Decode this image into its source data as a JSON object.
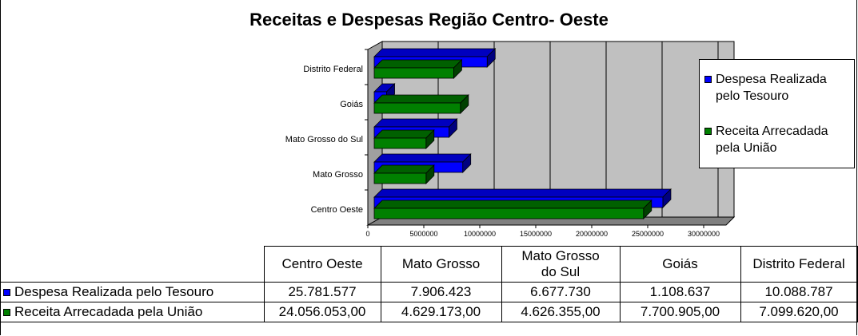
{
  "chart_data": {
    "type": "bar",
    "orientation": "horizontal",
    "title": "Receitas e Despesas Região Centro- Oeste",
    "categories": [
      "Centro Oeste",
      "Mato Grosso",
      "Mato Grosso do Sul",
      "Goiás",
      "Distrito Federal"
    ],
    "series": [
      {
        "name": "Despesa Realizada pelo Tesouro",
        "values": [
          25781577,
          7906423,
          6677730,
          1108637,
          10088787
        ],
        "color": "#0000ff"
      },
      {
        "name": "Receita Arrecadada pela União",
        "values": [
          24056053.0,
          4629173.0,
          4626355.0,
          7700905.0,
          7099620.0
        ],
        "color": "#008000"
      }
    ],
    "xlim": [
      0,
      30000000
    ],
    "ticks": [
      "0",
      "5000000",
      "10000000",
      "15000000",
      "20000000",
      "25000000",
      "30000000"
    ],
    "legend": {
      "position": "right",
      "items": [
        {
          "line1": "Despesa Realizada",
          "line2": "pelo Tesouro"
        },
        {
          "line1": "Receita Arrecadada",
          "line2": "pela União"
        }
      ]
    },
    "grid": true
  },
  "table": {
    "headers": [
      "Centro Oeste",
      "Mato Grosso",
      "Mato Grosso",
      "do Sul",
      "Goiás",
      "Distrito Federal"
    ],
    "rows": [
      {
        "label": "Despesa Realizada pelo Tesouro",
        "cells": [
          "25.781.577",
          "7.906.423",
          "6.677.730",
          "1.108.637",
          "10.088.787"
        ]
      },
      {
        "label": "Receita Arrecadada pela União",
        "cells": [
          "24.056.053,00",
          "4.629.173,00",
          "4.626.355,00",
          "7.700.905,00",
          "7.099.620,00"
        ]
      }
    ]
  },
  "colors": {
    "blue": "#0000ff",
    "green": "#008000",
    "wall": "#c0c0c0"
  }
}
